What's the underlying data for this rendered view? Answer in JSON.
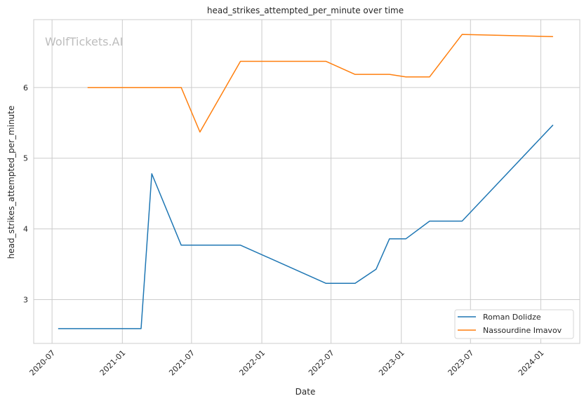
{
  "chart_data": {
    "type": "line",
    "title": "head_strikes_attempted_per_minute over time",
    "xlabel": "Date",
    "ylabel": "head_strikes_attempted_per_minute",
    "watermark": "WolfTickets.AI",
    "xlim": [
      "2020-05-14",
      "2024-04-12"
    ],
    "ylim": [
      2.38,
      6.96
    ],
    "x_ticks": [
      "2020-07",
      "2021-01",
      "2021-07",
      "2022-01",
      "2022-07",
      "2023-01",
      "2023-07",
      "2024-01"
    ],
    "y_ticks": [
      3,
      4,
      5,
      6
    ],
    "grid": true,
    "legend_position": "bottom-right",
    "series": [
      {
        "name": "Roman Dolidze",
        "color": "#1f77b4",
        "points": [
          [
            "2020-07-17",
            2.59
          ],
          [
            "2021-02-19",
            2.59
          ],
          [
            "2021-03-19",
            4.78
          ],
          [
            "2021-06-04",
            3.77
          ],
          [
            "2021-11-06",
            3.77
          ],
          [
            "2022-06-18",
            3.23
          ],
          [
            "2022-09-02",
            3.23
          ],
          [
            "2022-10-27",
            3.43
          ],
          [
            "2022-12-01",
            3.86
          ],
          [
            "2023-01-13",
            3.86
          ],
          [
            "2023-03-16",
            4.11
          ],
          [
            "2023-06-09",
            4.11
          ],
          [
            "2024-02-02",
            5.47
          ]
        ]
      },
      {
        "name": "Nassourdine Imavov",
        "color": "#ff7f0e",
        "points": [
          [
            "2020-10-02",
            6.0
          ],
          [
            "2021-06-04",
            6.0
          ],
          [
            "2021-07-23",
            5.37
          ],
          [
            "2021-11-06",
            6.37
          ],
          [
            "2022-06-18",
            6.37
          ],
          [
            "2022-09-02",
            6.185
          ],
          [
            "2022-12-01",
            6.185
          ],
          [
            "2023-01-13",
            6.15
          ],
          [
            "2023-03-16",
            6.15
          ],
          [
            "2023-06-09",
            6.75
          ],
          [
            "2024-02-02",
            6.72
          ]
        ]
      }
    ]
  }
}
